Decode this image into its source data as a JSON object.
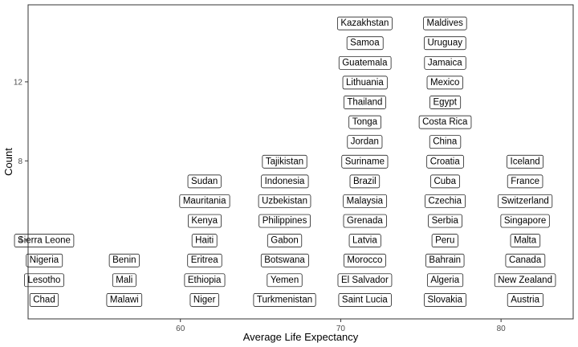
{
  "chart_data": {
    "type": "scatter",
    "marks": "text-labels",
    "xlabel": "Average Life Expectancy",
    "ylabel": "Count",
    "xlim": [
      50.5,
      84.5
    ],
    "ylim": [
      0,
      15.9
    ],
    "xticks": [
      60,
      70,
      80
    ],
    "yticks": [
      4,
      8,
      12
    ],
    "grid": false,
    "columns": [
      {
        "x": 51.5,
        "labels": [
          "Chad",
          "Lesotho",
          "Nigeria",
          "Sierra Leone"
        ]
      },
      {
        "x": 56.5,
        "labels": [
          "Malawi",
          "Mali",
          "Benin"
        ]
      },
      {
        "x": 61.5,
        "labels": [
          "Niger",
          "Ethiopia",
          "Eritrea",
          "Haiti",
          "Kenya",
          "Mauritania",
          "Sudan"
        ]
      },
      {
        "x": 66.5,
        "labels": [
          "Turkmenistan",
          "Yemen",
          "Botswana",
          "Gabon",
          "Philippines",
          "Uzbekistan",
          "Indonesia",
          "Tajikistan"
        ]
      },
      {
        "x": 71.5,
        "labels": [
          "Saint Lucia",
          "El Salvador",
          "Morocco",
          "Latvia",
          "Grenada",
          "Malaysia",
          "Brazil",
          "Suriname",
          "Jordan",
          "Tonga",
          "Thailand",
          "Lithuania",
          "Guatemala",
          "Samoa",
          "Kazakhstan"
        ]
      },
      {
        "x": 76.5,
        "labels": [
          "Slovakia",
          "Algeria",
          "Bahrain",
          "Peru",
          "Serbia",
          "Czechia",
          "Cuba",
          "Croatia",
          "China",
          "Costa Rica",
          "Egypt",
          "Mexico",
          "Jamaica",
          "Uruguay",
          "Maldives"
        ]
      },
      {
        "x": 81.5,
        "labels": [
          "Austria",
          "New Zealand",
          "Canada",
          "Malta",
          "Singapore",
          "Switzerland",
          "France",
          "Iceland"
        ]
      }
    ]
  }
}
